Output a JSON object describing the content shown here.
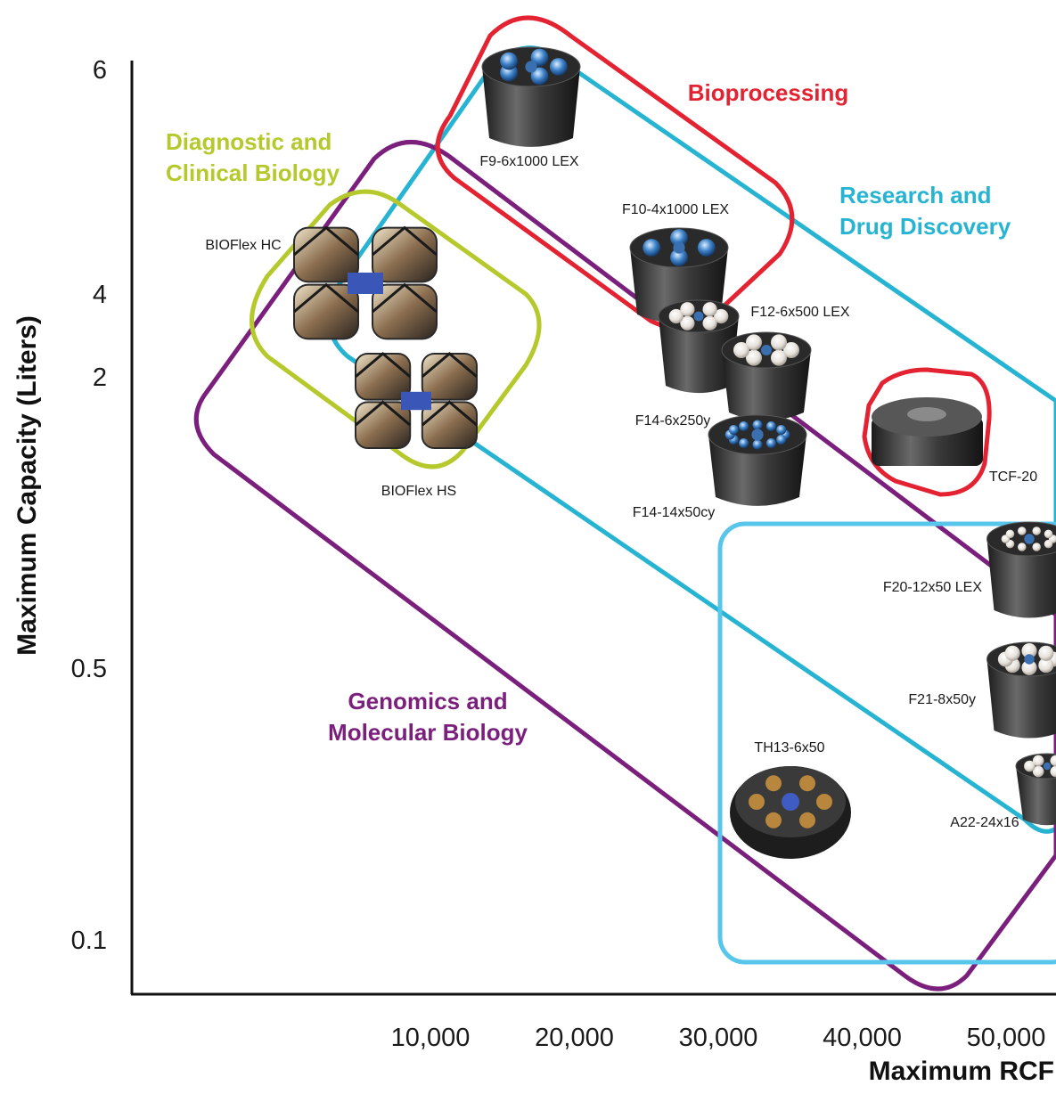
{
  "chart_data": {
    "type": "scatter",
    "xlabel": "Maximum RCF",
    "ylabel": "Maximum Capacity (Liters)",
    "x_ticks": [
      10000,
      20000,
      30000,
      40000,
      50000
    ],
    "x_tick_labels": [
      "10,000",
      "20,000",
      "30,000",
      "40,000",
      "50,000"
    ],
    "y_ticks": [
      6,
      4,
      2,
      0.5,
      0.1
    ],
    "y_tick_labels": [
      "6",
      "4",
      "2",
      "0.5",
      "0.1"
    ],
    "grid": false,
    "points": [
      {
        "label": "F9-6x1000 LEX",
        "x": 17000,
        "y": 6
      },
      {
        "label": "F10-4x1000 LEX",
        "x": 27500,
        "y": 4
      },
      {
        "label": "BIOFlex HC",
        "x": 5500,
        "y": 4
      },
      {
        "label": "BIOFlex HS",
        "x": 8500,
        "y": 2
      },
      {
        "label": "F12-6x500 LEX",
        "x": 33500,
        "y": 3
      },
      {
        "label": "F14-6x250y",
        "x": 29500,
        "y": 2
      },
      {
        "label": "F14-14x50cy",
        "x": 34000,
        "y": 1.5
      },
      {
        "label": "TCF-20",
        "x": 46000,
        "y": 1.9
      },
      {
        "label": "F20-12x50 LEX",
        "x": 55000,
        "y": 0.9
      },
      {
        "label": "F21-8x50y",
        "x": 55000,
        "y": 0.5
      },
      {
        "label": "TH13-6x50",
        "x": 35000,
        "y": 0.3
      },
      {
        "label": "A22-24x16",
        "x": 56000,
        "y": 0.3
      }
    ],
    "groups": [
      {
        "name": "Bioprocessing",
        "color": "#e32232"
      },
      {
        "name": "Research and\nDrug Discovery",
        "color": "#27b4d2"
      },
      {
        "name": "Diagnostic and\nClinical Biology",
        "color": "#b5c92c"
      },
      {
        "name": "Genomics and\nMolecular Biology",
        "color": "#7b1f7d"
      }
    ]
  }
}
